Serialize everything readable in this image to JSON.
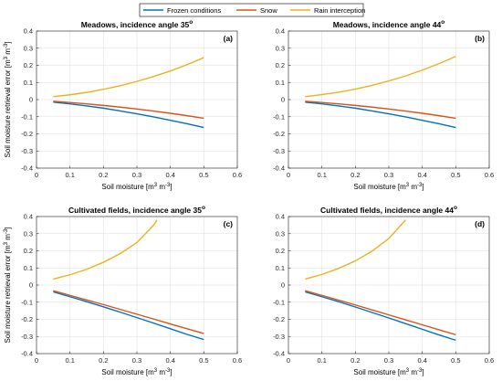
{
  "legend": {
    "items": [
      {
        "name": "Frozen conditions",
        "color": "#0072BD"
      },
      {
        "name": "Snow",
        "color": "#D95319"
      },
      {
        "name": "Rain interception",
        "color": "#EDB120"
      }
    ]
  },
  "chart_data": [
    {
      "type": "line",
      "title_main": "Meadows, incidence angle 35",
      "title_sup": "o",
      "panel_label": "(a)",
      "xlabel_main": "Soil moisture [m",
      "xlabel_parts": [
        "3",
        " m",
        "-3",
        "]"
      ],
      "ylabel_main": "Soil moisture retrieval error [m",
      "ylabel_parts": [
        "3",
        " m",
        "-3",
        "]"
      ],
      "xlim": [
        0,
        0.6
      ],
      "ylim": [
        -0.4,
        0.4
      ],
      "xticks": [
        0,
        0.1,
        0.2,
        0.3,
        0.4,
        0.5,
        0.6
      ],
      "yticks": [
        -0.4,
        -0.3,
        -0.2,
        -0.1,
        0,
        0.1,
        0.2,
        0.3,
        0.4
      ],
      "grid": true,
      "x": [
        0.05,
        0.1,
        0.15,
        0.2,
        0.25,
        0.3,
        0.35,
        0.4,
        0.45,
        0.5
      ],
      "series": [
        {
          "name": "Frozen conditions",
          "color": "#0072BD",
          "values": [
            -0.015,
            -0.025,
            -0.037,
            -0.05,
            -0.066,
            -0.083,
            -0.101,
            -0.121,
            -0.141,
            -0.163
          ]
        },
        {
          "name": "Snow",
          "color": "#D95319",
          "values": [
            -0.01,
            -0.017,
            -0.025,
            -0.034,
            -0.044,
            -0.055,
            -0.067,
            -0.08,
            -0.094,
            -0.109
          ]
        },
        {
          "name": "Rain interception",
          "color": "#EDB120",
          "values": [
            0.017,
            0.028,
            0.042,
            0.06,
            0.081,
            0.106,
            0.135,
            0.167,
            0.204,
            0.245
          ]
        }
      ]
    },
    {
      "type": "line",
      "title_main": "Meadows, incidence angle 44",
      "title_sup": "o",
      "panel_label": "(b)",
      "xlabel_main": "Soil moisture [m",
      "xlabel_parts": [
        "3",
        " m",
        "-3",
        "]"
      ],
      "ylabel_main": "",
      "ylabel_parts": [],
      "xlim": [
        0,
        0.6
      ],
      "ylim": [
        -0.4,
        0.4
      ],
      "xticks": [
        0,
        0.1,
        0.2,
        0.3,
        0.4,
        0.5,
        0.6
      ],
      "yticks": [
        -0.4,
        -0.3,
        -0.2,
        -0.1,
        0,
        0.1,
        0.2,
        0.3,
        0.4
      ],
      "grid": true,
      "x": [
        0.05,
        0.1,
        0.15,
        0.2,
        0.25,
        0.3,
        0.35,
        0.4,
        0.45,
        0.5
      ],
      "series": [
        {
          "name": "Frozen conditions",
          "color": "#0072BD",
          "values": [
            -0.015,
            -0.025,
            -0.037,
            -0.05,
            -0.066,
            -0.083,
            -0.101,
            -0.121,
            -0.141,
            -0.163
          ]
        },
        {
          "name": "Snow",
          "color": "#D95319",
          "values": [
            -0.01,
            -0.017,
            -0.025,
            -0.034,
            -0.044,
            -0.055,
            -0.067,
            -0.08,
            -0.094,
            -0.109
          ]
        },
        {
          "name": "Rain interception",
          "color": "#EDB120",
          "values": [
            0.017,
            0.029,
            0.043,
            0.061,
            0.083,
            0.109,
            0.138,
            0.172,
            0.21,
            0.252
          ]
        }
      ]
    },
    {
      "type": "line",
      "title_main": "Cultivated fields, incidence angle 35",
      "title_sup": "o",
      "panel_label": "(c)",
      "xlabel_main": "Soil moisture [m",
      "xlabel_parts": [
        "3",
        " m",
        "-3",
        "]"
      ],
      "ylabel_main": "Soil moisture retrieval error [m",
      "ylabel_parts": [
        "3",
        " m",
        "-3",
        "]"
      ],
      "xlim": [
        0,
        0.6
      ],
      "ylim": [
        -0.4,
        0.4
      ],
      "xticks": [
        0,
        0.1,
        0.2,
        0.3,
        0.4,
        0.5,
        0.6
      ],
      "yticks": [
        -0.4,
        -0.3,
        -0.2,
        -0.1,
        0,
        0.1,
        0.2,
        0.3,
        0.4
      ],
      "grid": true,
      "x": [
        0.05,
        0.1,
        0.15,
        0.2,
        0.25,
        0.3,
        0.35,
        0.4,
        0.45,
        0.5
      ],
      "series": [
        {
          "name": "Frozen conditions",
          "color": "#0072BD",
          "values": [
            -0.04,
            -0.068,
            -0.097,
            -0.127,
            -0.158,
            -0.19,
            -0.222,
            -0.255,
            -0.288,
            -0.318
          ]
        },
        {
          "name": "Snow",
          "color": "#D95319",
          "values": [
            -0.033,
            -0.06,
            -0.087,
            -0.114,
            -0.142,
            -0.17,
            -0.198,
            -0.227,
            -0.255,
            -0.283
          ]
        },
        {
          "name": "Rain interception",
          "color": "#EDB120",
          "x": [
            0.05,
            0.1,
            0.15,
            0.2,
            0.25,
            0.3,
            0.35,
            0.36
          ],
          "values": [
            0.035,
            0.06,
            0.092,
            0.133,
            0.184,
            0.248,
            0.35,
            0.38
          ]
        }
      ]
    },
    {
      "type": "line",
      "title_main": "Cultivated fields, incidence angle 44",
      "title_sup": "o",
      "panel_label": "(d)",
      "xlabel_main": "Soil moisture [m",
      "xlabel_parts": [
        "3",
        " m",
        "-3",
        "]"
      ],
      "ylabel_main": "",
      "ylabel_parts": [],
      "xlim": [
        0,
        0.6
      ],
      "ylim": [
        -0.4,
        0.4
      ],
      "xticks": [
        0,
        0.1,
        0.2,
        0.3,
        0.4,
        0.5,
        0.6
      ],
      "yticks": [
        -0.4,
        -0.3,
        -0.2,
        -0.1,
        0,
        0.1,
        0.2,
        0.3,
        0.4
      ],
      "grid": true,
      "x": [
        0.05,
        0.1,
        0.15,
        0.2,
        0.25,
        0.3,
        0.35,
        0.4,
        0.45,
        0.5
      ],
      "series": [
        {
          "name": "Frozen conditions",
          "color": "#0072BD",
          "values": [
            -0.04,
            -0.068,
            -0.097,
            -0.128,
            -0.16,
            -0.192,
            -0.225,
            -0.258,
            -0.291,
            -0.322
          ]
        },
        {
          "name": "Snow",
          "color": "#D95319",
          "values": [
            -0.033,
            -0.06,
            -0.088,
            -0.116,
            -0.145,
            -0.174,
            -0.203,
            -0.232,
            -0.261,
            -0.29
          ]
        },
        {
          "name": "Rain interception",
          "color": "#EDB120",
          "x": [
            0.05,
            0.1,
            0.15,
            0.2,
            0.25,
            0.3,
            0.35
          ],
          "values": [
            0.035,
            0.062,
            0.097,
            0.141,
            0.198,
            0.272,
            0.38
          ]
        }
      ]
    }
  ]
}
